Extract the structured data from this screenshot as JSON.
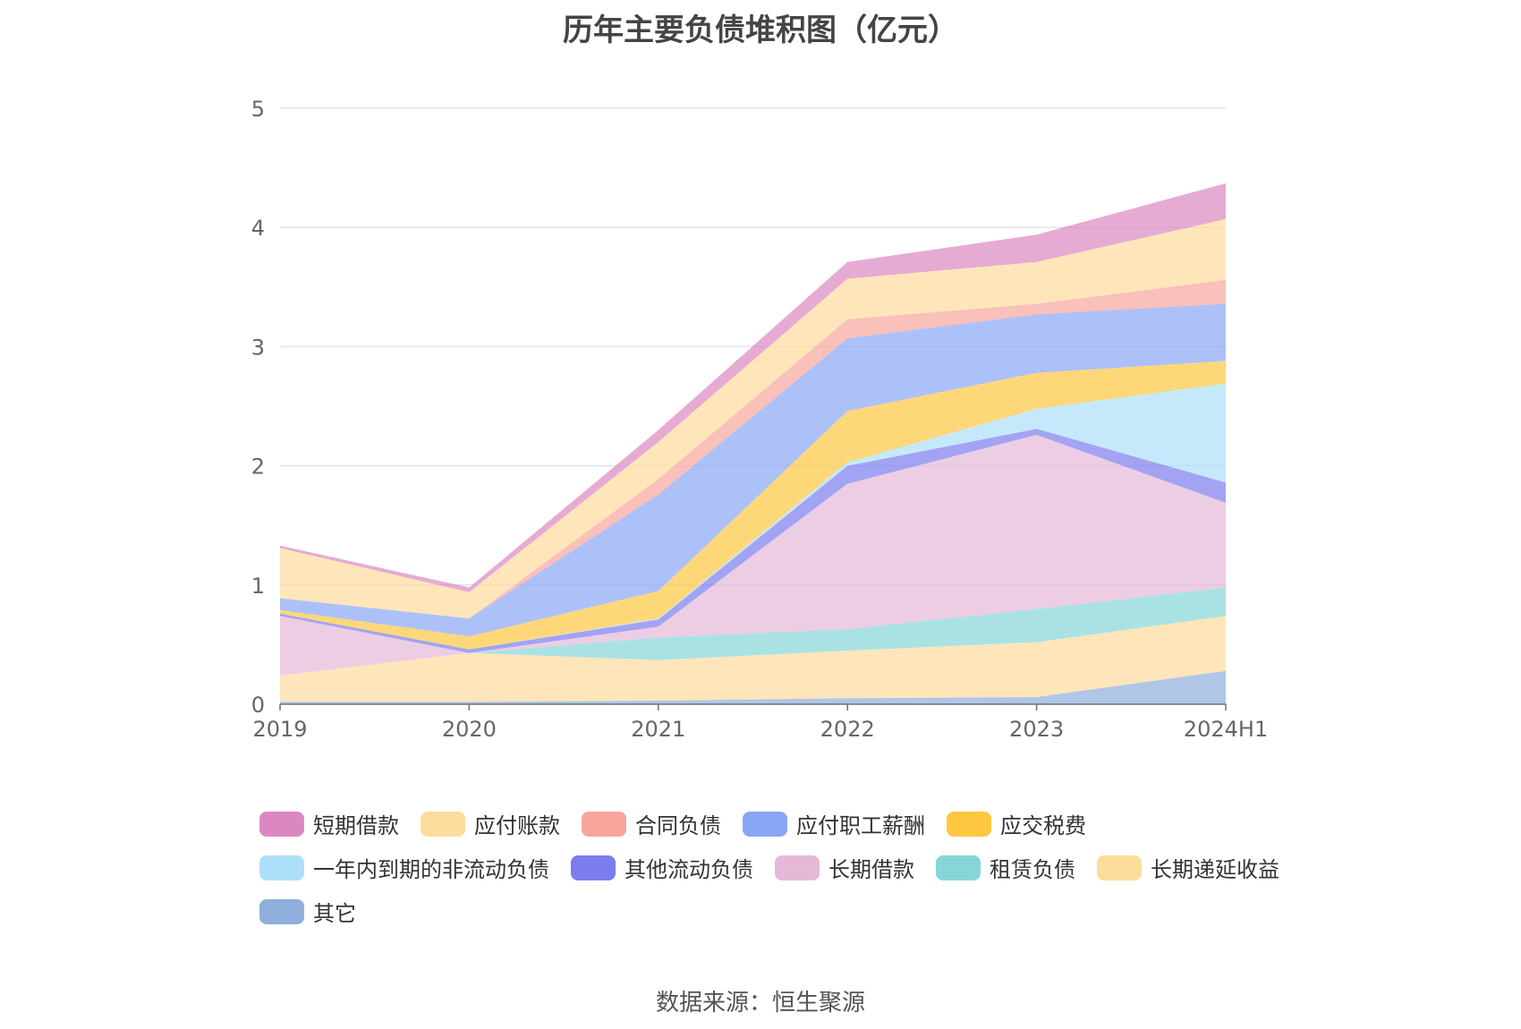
{
  "title": "历年主要负债堆积图（亿元）",
  "source": "数据来源：恒生聚源",
  "chart_data": {
    "type": "area",
    "stacked": true,
    "categories": [
      "2019",
      "2020",
      "2021",
      "2022",
      "2023",
      "2024H1"
    ],
    "ylim": [
      0,
      5
    ],
    "yticks": [
      0,
      1,
      2,
      3,
      4,
      5
    ],
    "grid": true,
    "legend_position": "bottom",
    "series": [
      {
        "name": "其它",
        "color": "#8eaedb",
        "values": [
          0.02,
          0.02,
          0.03,
          0.05,
          0.06,
          0.28
        ]
      },
      {
        "name": "长期递延收益",
        "color": "#fddc9c",
        "values": [
          0.22,
          0.41,
          0.34,
          0.4,
          0.46,
          0.46
        ]
      },
      {
        "name": "租赁负债",
        "color": "#86d6d9",
        "values": [
          0.0,
          0.0,
          0.19,
          0.18,
          0.28,
          0.24
        ]
      },
      {
        "name": "长期借款",
        "color": "#e6b8d8",
        "values": [
          0.5,
          0.0,
          0.09,
          1.22,
          1.46,
          0.71
        ]
      },
      {
        "name": "其他流动负债",
        "color": "#7c7cee",
        "values": [
          0.02,
          0.03,
          0.06,
          0.15,
          0.05,
          0.17
        ]
      },
      {
        "name": "一年内到期的非流动负债",
        "color": "#acdffa",
        "values": [
          0.0,
          0.0,
          0.01,
          0.03,
          0.17,
          0.83
        ]
      },
      {
        "name": "应交税费",
        "color": "#fec73f",
        "values": [
          0.03,
          0.11,
          0.23,
          0.43,
          0.3,
          0.19
        ]
      },
      {
        "name": "应付职工薪酬",
        "color": "#8aa6f7",
        "values": [
          0.1,
          0.15,
          0.81,
          0.61,
          0.49,
          0.48
        ]
      },
      {
        "name": "合同负债",
        "color": "#f8a59c",
        "values": [
          0.0,
          0.0,
          0.13,
          0.16,
          0.09,
          0.2
        ]
      },
      {
        "name": "应付账款",
        "color": "#fddc9c",
        "values": [
          0.42,
          0.22,
          0.31,
          0.34,
          0.35,
          0.51
        ]
      },
      {
        "name": "短期借款",
        "color": "#dc88c0",
        "values": [
          0.02,
          0.04,
          0.1,
          0.14,
          0.23,
          0.3
        ]
      }
    ]
  },
  "legend": [
    {
      "name": "短期借款",
      "color": "#dc88c0"
    },
    {
      "name": "应付账款",
      "color": "#fddc9c"
    },
    {
      "name": "合同负债",
      "color": "#f8a59c"
    },
    {
      "name": "应付职工薪酬",
      "color": "#8aa6f7"
    },
    {
      "name": "应交税费",
      "color": "#fec73f"
    },
    {
      "name": "一年内到期的非流动负债",
      "color": "#acdffa"
    },
    {
      "name": "其他流动负债",
      "color": "#7c7cee"
    },
    {
      "name": "长期借款",
      "color": "#e6b8d8"
    },
    {
      "name": "租赁负债",
      "color": "#86d6d9"
    },
    {
      "name": "长期递延收益",
      "color": "#fddc9c"
    },
    {
      "name": "其它",
      "color": "#8eaedb"
    }
  ]
}
